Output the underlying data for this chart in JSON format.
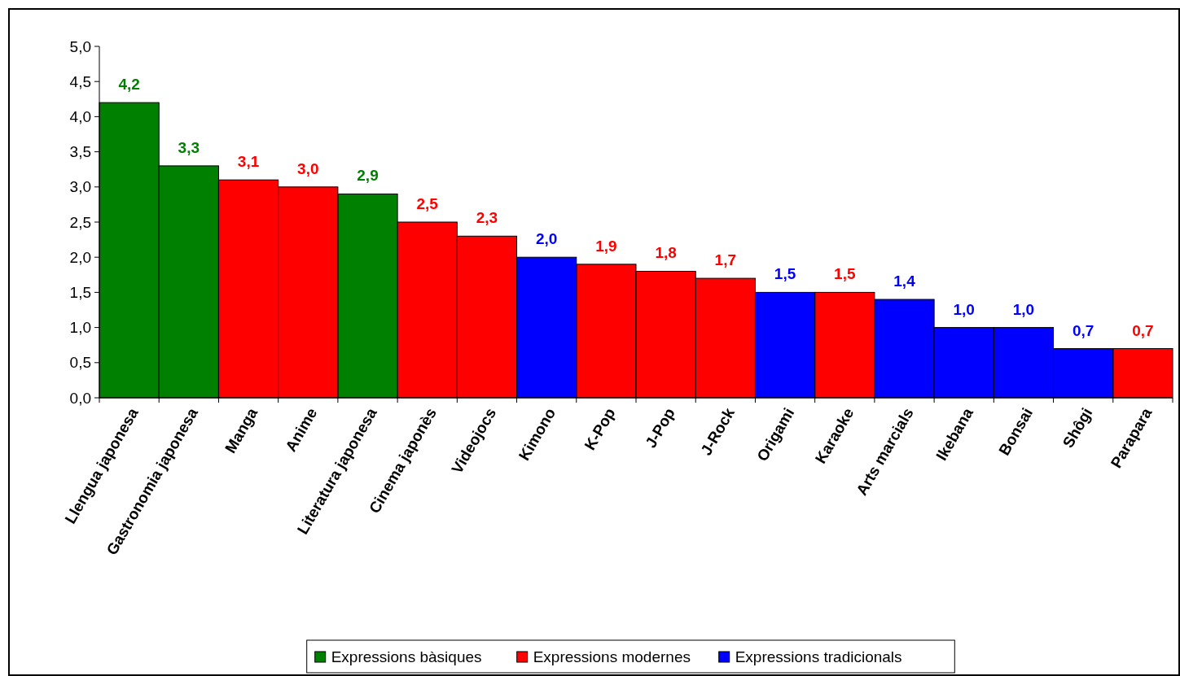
{
  "chart_data": {
    "type": "bar",
    "stacked": true,
    "categories": [
      "Llengua japonesa",
      "Gastronomia japonesa",
      "Manga",
      "Anime",
      "Literatura japonesa",
      "Cinema japonès",
      "Videojocs",
      "Kimono",
      "K-Pop",
      "J-Pop",
      "J-Rock",
      "Origami",
      "Karaoke",
      "Arts marcials",
      "Ikebana",
      "Bonsai",
      "Shôgi",
      "Parapara"
    ],
    "series": [
      {
        "name": "Expressions bàsiques",
        "color": "#008000",
        "values": [
          4.2,
          3.3,
          null,
          null,
          2.9,
          null,
          null,
          null,
          null,
          null,
          null,
          null,
          null,
          null,
          null,
          null,
          null,
          null
        ],
        "value_labels": [
          "4,2",
          "3,3",
          null,
          null,
          "2,9",
          null,
          null,
          null,
          null,
          null,
          null,
          null,
          null,
          null,
          null,
          null,
          null,
          null
        ]
      },
      {
        "name": "Expressions modernes",
        "color": "#ff0000",
        "values": [
          null,
          null,
          3.1,
          3.0,
          null,
          2.5,
          2.3,
          null,
          1.9,
          1.8,
          1.7,
          null,
          1.5,
          null,
          null,
          null,
          null,
          0.7
        ],
        "value_labels": [
          null,
          null,
          "3,1",
          "3,0",
          null,
          "2,5",
          "2,3",
          null,
          "1,9",
          "1,8",
          "1,7",
          null,
          "1,5",
          null,
          null,
          null,
          null,
          "0,7"
        ]
      },
      {
        "name": "Expressions tradicionals",
        "color": "#0000ff",
        "values": [
          null,
          null,
          null,
          null,
          null,
          null,
          null,
          2.0,
          null,
          null,
          null,
          1.5,
          null,
          1.4,
          1.0,
          1.0,
          0.7,
          null
        ],
        "value_labels": [
          null,
          null,
          null,
          null,
          null,
          null,
          null,
          "2,0",
          null,
          null,
          null,
          "1,5",
          null,
          "1,4",
          "1,0",
          "1,0",
          "0,7",
          null
        ]
      }
    ],
    "ylim": [
      0,
      5
    ],
    "yticks": [
      {
        "value": 0,
        "label": "0,0"
      },
      {
        "value": 0.5,
        "label": "0,5"
      },
      {
        "value": 1,
        "label": "1,0"
      },
      {
        "value": 1.5,
        "label": "1,5"
      },
      {
        "value": 2,
        "label": "2,0"
      },
      {
        "value": 2.5,
        "label": "2,5"
      },
      {
        "value": 3,
        "label": "3,0"
      },
      {
        "value": 3.5,
        "label": "3,5"
      },
      {
        "value": 4,
        "label": "4,0"
      },
      {
        "value": 4.5,
        "label": "4,5"
      },
      {
        "value": 5,
        "label": "5,0"
      }
    ],
    "grid": false,
    "legend": "bottom"
  }
}
